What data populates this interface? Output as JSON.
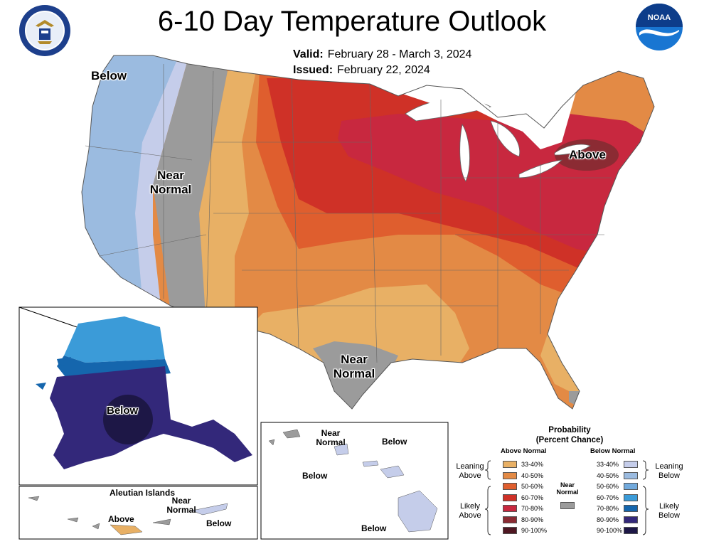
{
  "title": "6-10 Day Temperature Outlook",
  "valid_label": "Valid:",
  "valid_dates": "February 28 - March 3, 2024",
  "issued_label": "Issued:",
  "issued_date": "February 22, 2024",
  "logos": {
    "left": "department-of-commerce-seal",
    "right": "noaa-logo",
    "noaa_text": "NOAA"
  },
  "map_labels": {
    "below_west": "Below",
    "near_normal_west_1": "Near",
    "near_normal_west_2": "Normal",
    "above_northeast": "Above",
    "near_normal_texas_1": "Near",
    "near_normal_texas_2": "Normal",
    "alaska_below": "Below",
    "aleutian_title": "Aleutian Islands",
    "aleutian_above": "Above",
    "aleutian_near_1": "Near",
    "aleutian_near_2": "Normal",
    "aleutian_below": "Below",
    "hawaii_near_1": "Near",
    "hawaii_near_2": "Normal",
    "hawaii_below_1": "Below",
    "hawaii_below_2": "Below",
    "hawaii_below_3": "Below"
  },
  "legend": {
    "title_1": "Probability",
    "title_2": "(Percent Chance)",
    "above_head": "Above Normal",
    "below_head": "Below Normal",
    "near_normal_1": "Near",
    "near_normal_2": "Normal",
    "leaning_above_1": "Leaning",
    "leaning_above_2": "Above",
    "likely_above_1": "Likely",
    "likely_above_2": "Above",
    "leaning_below_1": "Leaning",
    "leaning_below_2": "Below",
    "likely_below_1": "Likely",
    "likely_below_2": "Below",
    "above": [
      {
        "range": "33-40%",
        "color": "#e8b065"
      },
      {
        "range": "40-50%",
        "color": "#e38a45"
      },
      {
        "range": "50-60%",
        "color": "#df5e2e"
      },
      {
        "range": "60-70%",
        "color": "#cf3127"
      },
      {
        "range": "70-80%",
        "color": "#c8283f"
      },
      {
        "range": "80-90%",
        "color": "#8b2b33"
      },
      {
        "range": "90-100%",
        "color": "#4f1722"
      }
    ],
    "below": [
      {
        "range": "33-40%",
        "color": "#c5cdea"
      },
      {
        "range": "40-50%",
        "color": "#9bbbe0"
      },
      {
        "range": "50-60%",
        "color": "#71a9dc"
      },
      {
        "range": "60-70%",
        "color": "#3b9bd8"
      },
      {
        "range": "70-80%",
        "color": "#1566ad"
      },
      {
        "range": "80-90%",
        "color": "#33287a"
      },
      {
        "range": "90-100%",
        "color": "#1d1746"
      }
    ],
    "near_normal_color": "#9b9b9b"
  }
}
